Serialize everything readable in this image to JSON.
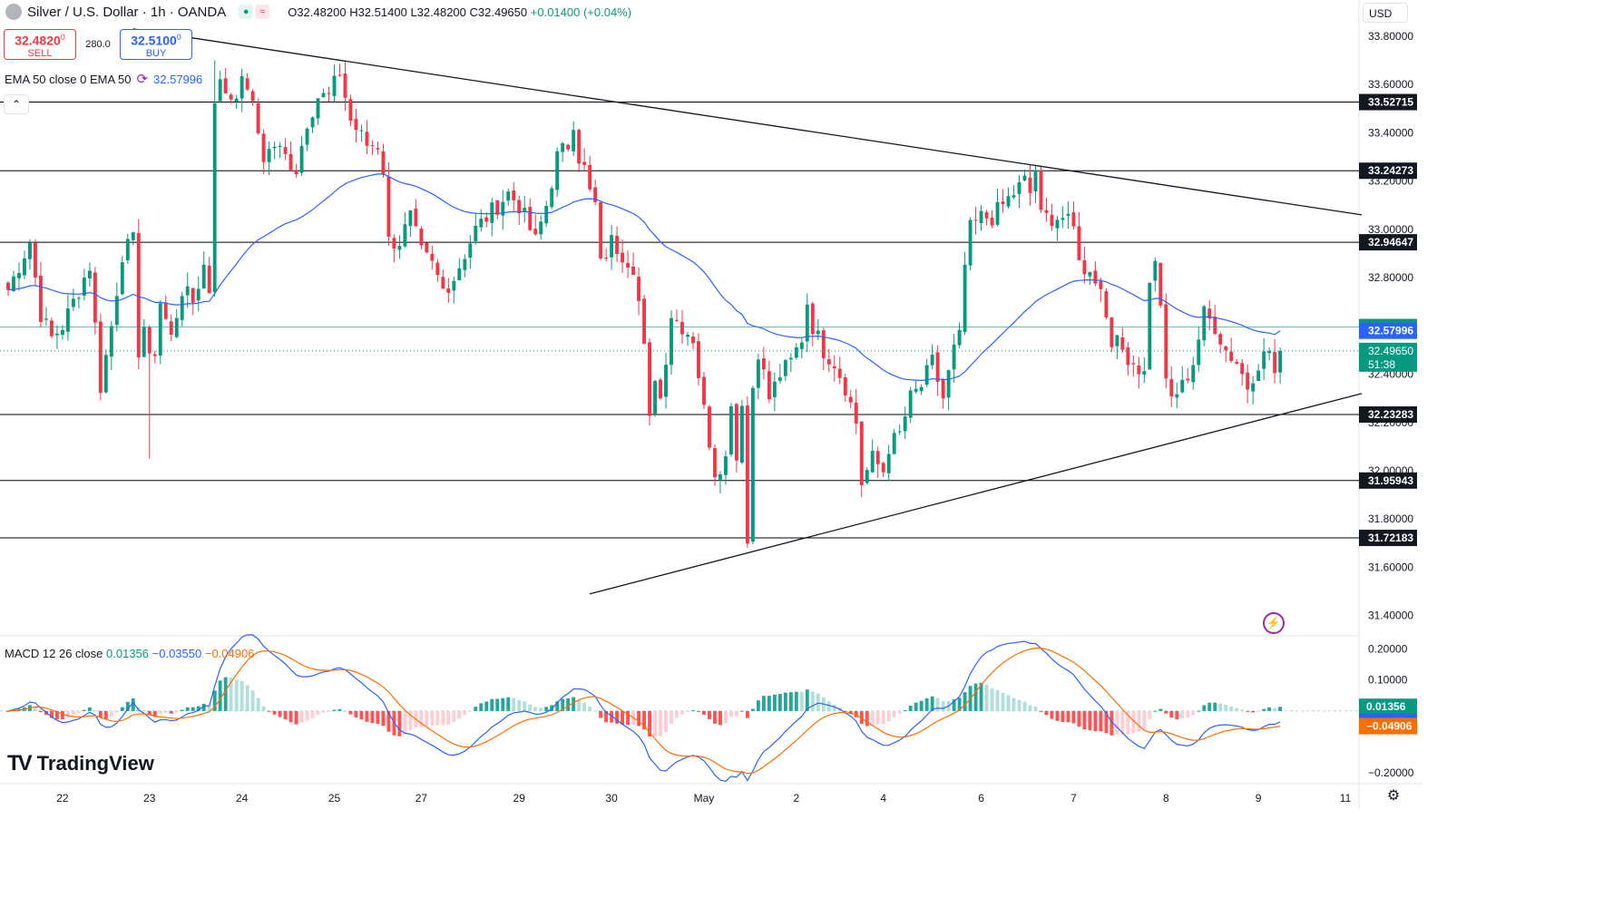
{
  "header": {
    "title": "Silver / U.S. Dollar · 1h · OANDA",
    "open": "O32.48200",
    "high": "H32.51400",
    "low": "L32.48200",
    "close": "C32.49650",
    "change": "+0.01400 (+0.04%)"
  },
  "trade": {
    "sell_price": "32.4820",
    "sell_sup": "0",
    "sell_label": "SELL",
    "spread": "280.0",
    "buy_price": "32.5100",
    "buy_sup": "0",
    "buy_label": "BUY"
  },
  "ema_legend": {
    "label": "EMA 50 close 0 EMA 50",
    "value": "32.57996"
  },
  "macd_legend": {
    "label": "MACD 12 26 close",
    "hist": "0.01356",
    "macd": "−0.03550",
    "signal": "−0.04906"
  },
  "currency": "USD",
  "brand": "TradingView",
  "colors": {
    "up": "#089981",
    "down": "#f23645",
    "ema": "#2962ff",
    "signal": "#ff6d00",
    "hist_up": "#26a69a",
    "hist_up_light": "#b2dfdb",
    "hist_down": "#ff5252",
    "hist_down_light": "#ffcdd2"
  },
  "chart_data": {
    "type": "candlestick",
    "price_axis": {
      "ticks": [
        "33.80000",
        "33.60000",
        "33.40000",
        "33.20000",
        "33.00000",
        "32.80000",
        "32.60000",
        "32.40000",
        "32.20000",
        "32.00000",
        "31.80000",
        "31.60000",
        "31.40000"
      ],
      "range": [
        31.32,
        33.95
      ]
    },
    "time_axis": {
      "labels": [
        {
          "label": "22",
          "i": 10
        },
        {
          "label": "23",
          "i": 26
        },
        {
          "label": "24",
          "i": 43
        },
        {
          "label": "25",
          "i": 60
        },
        {
          "label": "27",
          "i": 76
        },
        {
          "label": "29",
          "i": 94
        },
        {
          "label": "30",
          "i": 111
        },
        {
          "label": "May",
          "i": 128
        },
        {
          "label": "2",
          "i": 145
        },
        {
          "label": "4",
          "i": 161
        },
        {
          "label": "6",
          "i": 179
        },
        {
          "label": "7",
          "i": 196
        },
        {
          "label": "8",
          "i": 213
        },
        {
          "label": "9",
          "i": 230
        },
        {
          "label": "11",
          "i": 246
        }
      ],
      "count": 249
    },
    "horizontal_levels": [
      "33.52715",
      "33.24273",
      "32.94647",
      "32.23283",
      "31.95943",
      "31.72183"
    ],
    "current": {
      "price": "32.49650",
      "countdown": "51:38",
      "bid_line": "32.59537",
      "ema": "32.57996"
    },
    "trendlines": [
      {
        "from": {
          "i": 23,
          "price": 33.83
        },
        "to": {
          "i": 249,
          "price": 33.06
        }
      },
      {
        "from": {
          "i": 107,
          "price": 31.49
        },
        "to": {
          "i": 249,
          "price": 32.32
        }
      }
    ],
    "anchors": [
      [
        0,
        32.75
      ],
      [
        4,
        32.95
      ],
      [
        6,
        32.65
      ],
      [
        8,
        32.55
      ],
      [
        10,
        32.6
      ],
      [
        13,
        32.75
      ],
      [
        15,
        32.85
      ],
      [
        17,
        32.35
      ],
      [
        19,
        32.6
      ],
      [
        21,
        32.9
      ],
      [
        23,
        32.95
      ],
      [
        24,
        32.5
      ],
      [
        25,
        32.6
      ],
      [
        26,
        32.45
      ],
      [
        27,
        32.5
      ],
      [
        28,
        32.7
      ],
      [
        30,
        32.55
      ],
      [
        32,
        32.75
      ],
      [
        34,
        32.7
      ],
      [
        36,
        32.85
      ],
      [
        37,
        32.75
      ],
      [
        38,
        33.55
      ],
      [
        39,
        33.6
      ],
      [
        41,
        33.55
      ],
      [
        43,
        33.6
      ],
      [
        44,
        33.6
      ],
      [
        46,
        33.4
      ],
      [
        47,
        33.3
      ],
      [
        49,
        33.35
      ],
      [
        51,
        33.3
      ],
      [
        53,
        33.25
      ],
      [
        55,
        33.45
      ],
      [
        57,
        33.55
      ],
      [
        59,
        33.55
      ],
      [
        61,
        33.65
      ],
      [
        62,
        33.55
      ],
      [
        63,
        33.45
      ],
      [
        66,
        33.35
      ],
      [
        68,
        33.35
      ],
      [
        69,
        33.25
      ],
      [
        70,
        32.95
      ],
      [
        72,
        32.95
      ],
      [
        74,
        33.05
      ],
      [
        76,
        32.9
      ],
      [
        78,
        32.85
      ],
      [
        80,
        32.75
      ],
      [
        82,
        32.8
      ],
      [
        84,
        32.9
      ],
      [
        86,
        33.0
      ],
      [
        88,
        33.05
      ],
      [
        90,
        33.1
      ],
      [
        92,
        33.15
      ],
      [
        94,
        33.1
      ],
      [
        95,
        33.05
      ],
      [
        97,
        32.95
      ],
      [
        99,
        33.1
      ],
      [
        101,
        33.3
      ],
      [
        103,
        33.35
      ],
      [
        104,
        33.45
      ],
      [
        105,
        33.3
      ],
      [
        106,
        33.25
      ],
      [
        107,
        33.15
      ],
      [
        108,
        33.1
      ],
      [
        109,
        32.85
      ],
      [
        111,
        32.95
      ],
      [
        113,
        32.9
      ],
      [
        115,
        32.85
      ],
      [
        116,
        32.7
      ],
      [
        117,
        32.5
      ],
      [
        118,
        32.2
      ],
      [
        119,
        32.4
      ],
      [
        120,
        32.3
      ],
      [
        122,
        32.65
      ],
      [
        124,
        32.6
      ],
      [
        126,
        32.55
      ],
      [
        128,
        32.25
      ],
      [
        130,
        32.0
      ],
      [
        132,
        32.05
      ],
      [
        133,
        32.3
      ],
      [
        134,
        32.05
      ],
      [
        135,
        32.3
      ],
      [
        136,
        31.7
      ],
      [
        137,
        32.35
      ],
      [
        138,
        32.5
      ],
      [
        140,
        32.3
      ],
      [
        142,
        32.4
      ],
      [
        144,
        32.45
      ],
      [
        146,
        32.55
      ],
      [
        147,
        32.7
      ],
      [
        148,
        32.6
      ],
      [
        150,
        32.5
      ],
      [
        152,
        32.45
      ],
      [
        154,
        32.35
      ],
      [
        156,
        32.2
      ],
      [
        157,
        31.95
      ],
      [
        159,
        32.05
      ],
      [
        161,
        32.0
      ],
      [
        162,
        32.1
      ],
      [
        164,
        32.15
      ],
      [
        166,
        32.3
      ],
      [
        168,
        32.35
      ],
      [
        170,
        32.45
      ],
      [
        172,
        32.3
      ],
      [
        174,
        32.5
      ],
      [
        175,
        32.55
      ],
      [
        176,
        32.85
      ],
      [
        177,
        33.0
      ],
      [
        179,
        33.05
      ],
      [
        181,
        33.05
      ],
      [
        183,
        33.1
      ],
      [
        185,
        33.15
      ],
      [
        187,
        33.2
      ],
      [
        188,
        33.15
      ],
      [
        189,
        33.25
      ],
      [
        190,
        33.05
      ],
      [
        192,
        33.05
      ],
      [
        194,
        33.05
      ],
      [
        196,
        33.0
      ],
      [
        197,
        32.9
      ],
      [
        198,
        32.8
      ],
      [
        199,
        32.85
      ],
      [
        201,
        32.75
      ],
      [
        203,
        32.55
      ],
      [
        205,
        32.5
      ],
      [
        207,
        32.45
      ],
      [
        209,
        32.4
      ],
      [
        210,
        32.8
      ],
      [
        211,
        32.85
      ],
      [
        212,
        32.7
      ],
      [
        213,
        32.35
      ],
      [
        214,
        32.3
      ],
      [
        216,
        32.35
      ],
      [
        218,
        32.45
      ],
      [
        220,
        32.65
      ],
      [
        222,
        32.6
      ],
      [
        224,
        32.5
      ],
      [
        226,
        32.45
      ],
      [
        228,
        32.35
      ],
      [
        230,
        32.45
      ],
      [
        232,
        32.5
      ],
      [
        233,
        32.4
      ],
      [
        234,
        32.5
      ]
    ],
    "volatility": 0.05,
    "bar_count": 235,
    "macd": {
      "axis_ticks": [
        "0.20000",
        "0.10000",
        "−0.20000"
      ],
      "range": [
        -0.235,
        0.24
      ],
      "current": {
        "hist": "0.01356",
        "macd": "−0.03550",
        "signal": "−0.04906"
      }
    }
  }
}
